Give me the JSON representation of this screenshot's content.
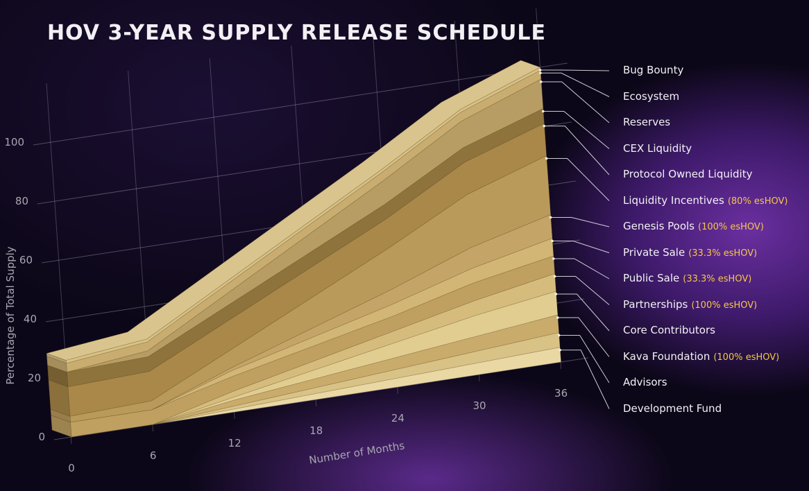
{
  "title": "HOV 3-YEAR SUPPLY RELEASE SCHEDULE",
  "chart_data": {
    "type": "area",
    "stacked": true,
    "x": [
      0,
      6,
      12,
      18,
      24,
      30,
      36
    ],
    "xlabel": "Number of Months",
    "ylabel": "Percentage of Total Supply",
    "xticks": [
      0,
      6,
      12,
      18,
      24,
      30,
      36
    ],
    "yticks": [
      0,
      20,
      40,
      60,
      80,
      100
    ],
    "ylim": [
      0,
      100
    ],
    "xlim": [
      0,
      36
    ],
    "grid": true,
    "legend_position": "right",
    "series": [
      {
        "name": "Development Fund",
        "values": [
          0,
          0,
          1,
          2,
          3,
          4,
          5
        ],
        "color": "#e9d8a4"
      },
      {
        "name": "Advisors",
        "values": [
          0,
          0,
          1,
          2,
          3,
          4,
          5
        ],
        "color": "#d8c285"
      },
      {
        "name": "Kava Foundation",
        "values": [
          0,
          0,
          2,
          3,
          4,
          5,
          6
        ],
        "color": "#c9ab6b"
      },
      {
        "name": "Core Contributors",
        "values": [
          0,
          0,
          1,
          3,
          5,
          7,
          8
        ],
        "color": "#e2cd91"
      },
      {
        "name": "Partnerships",
        "values": [
          0,
          0,
          2,
          3,
          4,
          5,
          6
        ],
        "color": "#d6bc7c"
      },
      {
        "name": "Public Sale",
        "values": [
          5,
          5,
          5,
          5,
          5,
          6,
          6
        ],
        "color": "#c0a061"
      },
      {
        "name": "Private Sale",
        "values": [
          0,
          0,
          2,
          3,
          4,
          5,
          6
        ],
        "color": "#d2b676"
      },
      {
        "name": "Genesis Pools",
        "values": [
          0,
          0,
          1,
          3,
          5,
          7,
          8
        ],
        "color": "#c5a567"
      },
      {
        "name": "Liquidity Incentives",
        "values": [
          2,
          3,
          6,
          10,
          14,
          18,
          20
        ],
        "color": "#b99a5a"
      },
      {
        "name": "Protocol Owned Liquidity",
        "values": [
          10,
          10,
          10,
          10,
          10,
          11,
          11
        ],
        "color": "#a98849"
      },
      {
        "name": "CEX Liquidity",
        "values": [
          5,
          5,
          5,
          5,
          5,
          5,
          5
        ],
        "color": "#8f733c"
      },
      {
        "name": "Reserves",
        "values": [
          0,
          2,
          4,
          6,
          8,
          9,
          10
        ],
        "color": "#b79d63"
      },
      {
        "name": "Ecosystem",
        "values": [
          3,
          3,
          3,
          3,
          3,
          3,
          3
        ],
        "color": "#c9ad70"
      },
      {
        "name": "Bug Bounty",
        "values": [
          1,
          1,
          1,
          1,
          1,
          1,
          1
        ],
        "color": "#d8c184"
      }
    ]
  },
  "legend": [
    {
      "label": "Bug Bounty",
      "note": ""
    },
    {
      "label": "Ecosystem",
      "note": ""
    },
    {
      "label": "Reserves",
      "note": ""
    },
    {
      "label": "CEX Liquidity",
      "note": ""
    },
    {
      "label": "Protocol Owned Liquidity",
      "note": ""
    },
    {
      "label": "Liquidity Incentives",
      "note": "(80% esHOV)"
    },
    {
      "label": "Genesis Pools",
      "note": "(100% esHOV)"
    },
    {
      "label": "Private Sale",
      "note": "(33.3% esHOV)"
    },
    {
      "label": "Public Sale",
      "note": "(33.3% esHOV)"
    },
    {
      "label": "Partnerships",
      "note": "(100% esHOV)"
    },
    {
      "label": "Core Contributors",
      "note": ""
    },
    {
      "label": "Kava Foundation",
      "note": "(100% esHOV)"
    },
    {
      "label": "Advisors",
      "note": ""
    },
    {
      "label": "Development Fund",
      "note": ""
    }
  ]
}
